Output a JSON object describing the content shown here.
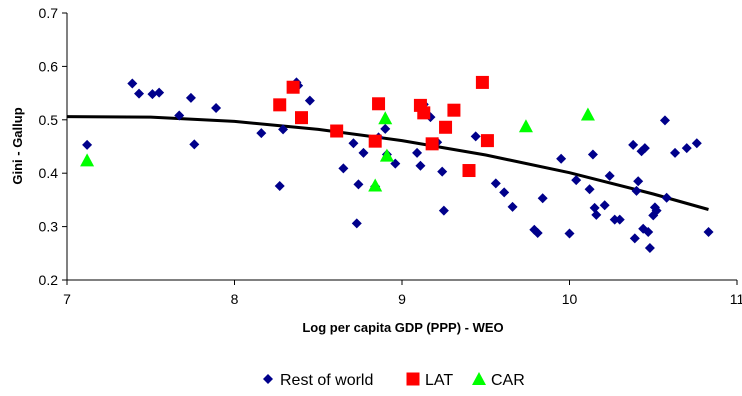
{
  "chart_data": {
    "type": "scatter",
    "title": "",
    "xlabel": "Log per capita GDP (PPP) - WEO",
    "ylabel": "Gini - Gallup",
    "xlim": [
      7,
      11
    ],
    "ylim": [
      0.2,
      0.7
    ],
    "xticks": [
      "7",
      "8",
      "9",
      "10",
      "11"
    ],
    "yticks": [
      "0.2",
      "0.3",
      "0.4",
      "0.5",
      "0.6",
      "0.7"
    ],
    "grid": false,
    "legend": "bottom",
    "series": [
      {
        "name": "Rest of world",
        "marker": "diamond",
        "color": "#00008B",
        "points": [
          [
            7.12,
            0.453
          ],
          [
            7.39,
            0.568
          ],
          [
            7.43,
            0.549
          ],
          [
            7.51,
            0.548
          ],
          [
            7.55,
            0.551
          ],
          [
            7.67,
            0.508
          ],
          [
            7.74,
            0.541
          ],
          [
            7.76,
            0.454
          ],
          [
            7.89,
            0.522
          ],
          [
            8.16,
            0.475
          ],
          [
            8.27,
            0.376
          ],
          [
            8.29,
            0.482
          ],
          [
            8.37,
            0.57
          ],
          [
            8.38,
            0.564
          ],
          [
            8.45,
            0.536
          ],
          [
            8.65,
            0.409
          ],
          [
            8.71,
            0.456
          ],
          [
            8.73,
            0.306
          ],
          [
            8.74,
            0.379
          ],
          [
            8.77,
            0.438
          ],
          [
            8.84,
            0.375
          ],
          [
            8.86,
            0.467
          ],
          [
            8.9,
            0.483
          ],
          [
            8.91,
            0.435
          ],
          [
            8.96,
            0.418
          ],
          [
            9.09,
            0.438
          ],
          [
            9.11,
            0.414
          ],
          [
            9.13,
            0.529
          ],
          [
            9.17,
            0.505
          ],
          [
            9.21,
            0.458
          ],
          [
            9.24,
            0.403
          ],
          [
            9.25,
            0.33
          ],
          [
            9.44,
            0.469
          ],
          [
            9.56,
            0.381
          ],
          [
            9.61,
            0.364
          ],
          [
            9.66,
            0.337
          ],
          [
            9.79,
            0.294
          ],
          [
            9.81,
            0.288
          ],
          [
            9.84,
            0.353
          ],
          [
            9.95,
            0.427
          ],
          [
            10.0,
            0.287
          ],
          [
            10.04,
            0.387
          ],
          [
            10.12,
            0.37
          ],
          [
            10.14,
            0.435
          ],
          [
            10.15,
            0.335
          ],
          [
            10.16,
            0.322
          ],
          [
            10.21,
            0.34
          ],
          [
            10.24,
            0.395
          ],
          [
            10.27,
            0.313
          ],
          [
            10.3,
            0.313
          ],
          [
            10.38,
            0.453
          ],
          [
            10.39,
            0.278
          ],
          [
            10.4,
            0.367
          ],
          [
            10.41,
            0.385
          ],
          [
            10.43,
            0.441
          ],
          [
            10.44,
            0.296
          ],
          [
            10.45,
            0.447
          ],
          [
            10.47,
            0.29
          ],
          [
            10.48,
            0.26
          ],
          [
            10.5,
            0.321
          ],
          [
            10.51,
            0.336
          ],
          [
            10.52,
            0.33
          ],
          [
            10.57,
            0.499
          ],
          [
            10.58,
            0.354
          ],
          [
            10.63,
            0.438
          ],
          [
            10.7,
            0.447
          ],
          [
            10.76,
            0.456
          ],
          [
            10.83,
            0.29
          ]
        ]
      },
      {
        "name": "LAT",
        "marker": "square",
        "color": "#FF0000",
        "points": [
          [
            8.27,
            0.528
          ],
          [
            8.35,
            0.561
          ],
          [
            8.4,
            0.504
          ],
          [
            8.61,
            0.479
          ],
          [
            8.84,
            0.46
          ],
          [
            8.86,
            0.53
          ],
          [
            9.11,
            0.527
          ],
          [
            9.13,
            0.513
          ],
          [
            9.18,
            0.455
          ],
          [
            9.26,
            0.486
          ],
          [
            9.31,
            0.518
          ],
          [
            9.4,
            0.405
          ],
          [
            9.48,
            0.57
          ],
          [
            9.51,
            0.461
          ]
        ]
      },
      {
        "name": "CAR",
        "marker": "triangle",
        "color": "#00FF00",
        "points": [
          [
            7.12,
            0.424
          ],
          [
            8.84,
            0.377
          ],
          [
            8.9,
            0.503
          ],
          [
            8.91,
            0.433
          ],
          [
            9.74,
            0.488
          ],
          [
            10.11,
            0.51
          ]
        ]
      }
    ],
    "trendline": {
      "type": "polynomial",
      "color": "#000000",
      "points": [
        [
          7.0,
          0.506
        ],
        [
          7.5,
          0.505
        ],
        [
          8.0,
          0.497
        ],
        [
          8.5,
          0.482
        ],
        [
          9.0,
          0.461
        ],
        [
          9.5,
          0.434
        ],
        [
          10.0,
          0.401
        ],
        [
          10.5,
          0.361
        ],
        [
          10.83,
          0.332
        ]
      ]
    }
  }
}
